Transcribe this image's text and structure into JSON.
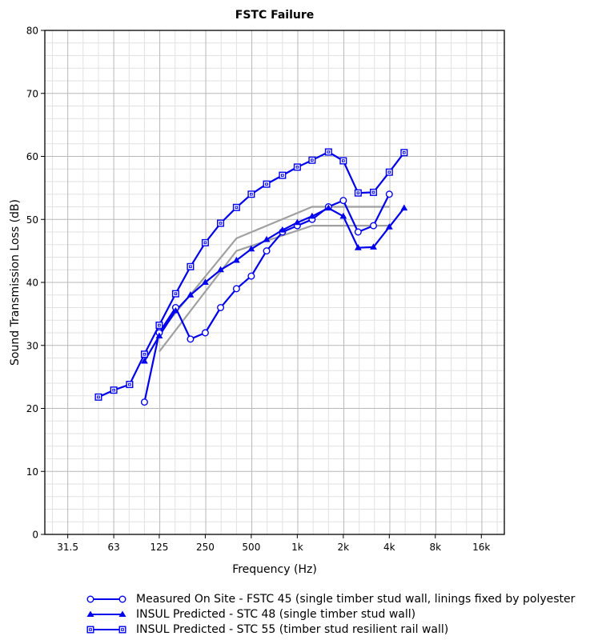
{
  "chart_data": {
    "type": "line",
    "title": "FSTC Failure",
    "xlabel": "Frequency (Hz)",
    "ylabel": "Sound Transmission Loss (dB)",
    "x_scale": "log",
    "x_ticks": [
      31.5,
      63,
      125,
      250,
      500,
      1000,
      2000,
      4000,
      8000,
      16000
    ],
    "x_tick_labels": [
      "31.5",
      "63",
      "125",
      "250",
      "500",
      "1k",
      "2k",
      "4k",
      "8k",
      "16k"
    ],
    "xlim": [
      22.3,
      22627
    ],
    "ylim": [
      0,
      80
    ],
    "y_ticks": [
      0,
      10,
      20,
      30,
      40,
      50,
      60,
      70,
      80
    ],
    "grid": true,
    "legend_position": "bottom",
    "series": [
      {
        "name": "Measured On Site - FSTC 45 (single timber stud wall, linings fixed by polyester",
        "color": "#0000ee",
        "marker": "circle",
        "points": [
          [
            100,
            21
          ],
          [
            125,
            32
          ],
          [
            160,
            36
          ],
          [
            200,
            31
          ],
          [
            250,
            32
          ],
          [
            315,
            36
          ],
          [
            400,
            39
          ],
          [
            500,
            41
          ],
          [
            630,
            45
          ],
          [
            800,
            48
          ],
          [
            1000,
            49
          ],
          [
            1250,
            50
          ],
          [
            1600,
            52
          ],
          [
            2000,
            53
          ],
          [
            2500,
            48
          ],
          [
            3150,
            49
          ],
          [
            4000,
            54
          ]
        ]
      },
      {
        "name": "INSUL Predicted - STC 48 (single timber stud wall)",
        "color": "#0000ee",
        "marker": "triangle",
        "points": [
          [
            100,
            27.5
          ],
          [
            125,
            31.5
          ],
          [
            160,
            35.5
          ],
          [
            200,
            38
          ],
          [
            250,
            40
          ],
          [
            315,
            42
          ],
          [
            400,
            43.5
          ],
          [
            500,
            45.3
          ],
          [
            630,
            46.8
          ],
          [
            800,
            48.3
          ],
          [
            1000,
            49.5
          ],
          [
            1250,
            50.5
          ],
          [
            1600,
            51.8
          ],
          [
            2000,
            50.5
          ],
          [
            2500,
            45.5
          ],
          [
            3150,
            45.6
          ],
          [
            4000,
            48.8
          ],
          [
            5000,
            51.8
          ]
        ]
      },
      {
        "name": "INSUL Predicted - STC 55 (timber stud resilient rail wall)",
        "color": "#0000ee",
        "marker": "square",
        "points": [
          [
            50,
            21.8
          ],
          [
            63,
            22.9
          ],
          [
            80,
            23.8
          ],
          [
            100,
            28.6
          ],
          [
            125,
            33.2
          ],
          [
            160,
            38.2
          ],
          [
            200,
            42.5
          ],
          [
            250,
            46.3
          ],
          [
            315,
            49.4
          ],
          [
            400,
            51.9
          ],
          [
            500,
            54
          ],
          [
            630,
            55.6
          ],
          [
            800,
            57
          ],
          [
            1000,
            58.3
          ],
          [
            1250,
            59.4
          ],
          [
            1600,
            60.7
          ],
          [
            2000,
            59.3
          ],
          [
            2500,
            54.2
          ],
          [
            3150,
            54.3
          ],
          [
            4000,
            57.5
          ],
          [
            5000,
            60.6
          ]
        ]
      }
    ],
    "contours": [
      {
        "color": "#a0a0a0",
        "points": [
          [
            125,
            29
          ],
          [
            400,
            45
          ],
          [
            1250,
            49
          ],
          [
            4000,
            49
          ]
        ]
      },
      {
        "color": "#a0a0a0",
        "points": [
          [
            125,
            32
          ],
          [
            400,
            47
          ],
          [
            1250,
            52
          ],
          [
            4000,
            52
          ]
        ]
      }
    ]
  }
}
